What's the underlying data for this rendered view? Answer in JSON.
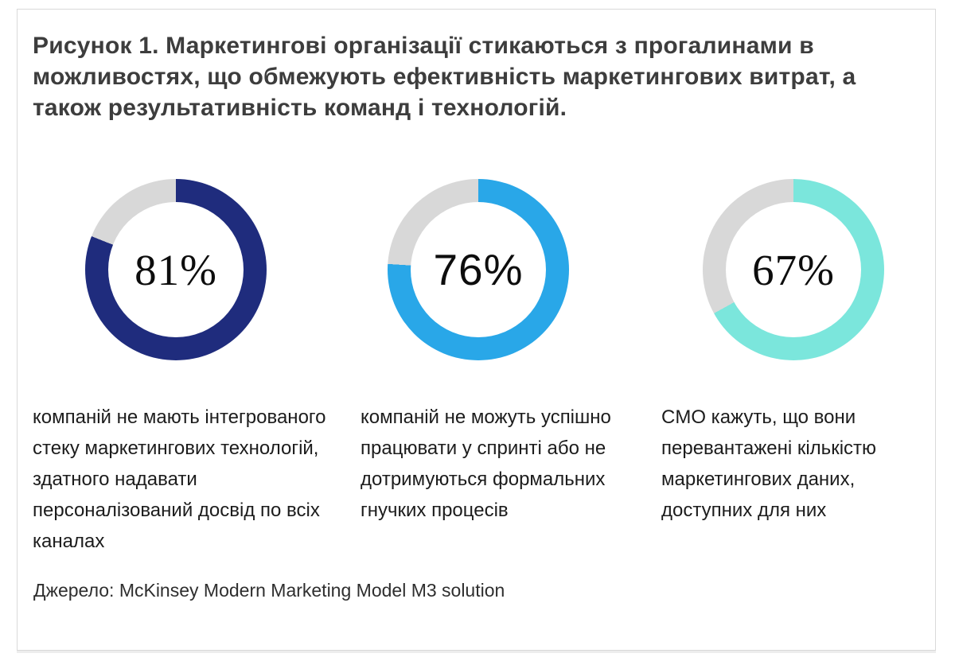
{
  "figure": {
    "title": "Рисунок 1. Маркетингові організації стикаються з прогалинами в можливостях, що обмежують ефективність маркетингових витрат, а також результативність команд і технологій.",
    "source": "Джерело: McKinsey Modern Marketing Model M3 solution"
  },
  "colors": {
    "navy": "#1f2c7d",
    "bright_blue": "#29a7e8",
    "teal": "#7be6dc",
    "track_gray": "#d8d8d8",
    "title_text": "#3d3d3d",
    "body_text": "#1c1c1c",
    "card_border": "#d9d9d9"
  },
  "chart_data": [
    {
      "type": "pie",
      "variant": "donut",
      "value": 81,
      "label": "81%",
      "color": "#1f2c7d",
      "track_color": "#d8d8d8",
      "fill_start": "12 o'clock clockwise",
      "description": "компаній не мають інтегрованого стеку маркетингових технологій, здатного надавати персоналізований досвід по всіх каналах"
    },
    {
      "type": "pie",
      "variant": "donut",
      "value": 76,
      "label": "76%",
      "color": "#29a7e8",
      "track_color": "#d8d8d8",
      "fill_start": "12 o'clock clockwise",
      "description": "компаній не можуть успішно працювати у спринті або не дотримуються формальних гнучких процесів"
    },
    {
      "type": "pie",
      "variant": "donut",
      "value": 67,
      "label": "67%",
      "color": "#7be6dc",
      "track_color": "#d8d8d8",
      "fill_start": "12 o'clock clockwise",
      "description": "CMO кажуть, що вони перевантажені кількістю маркетингових даних, доступних для них"
    }
  ]
}
